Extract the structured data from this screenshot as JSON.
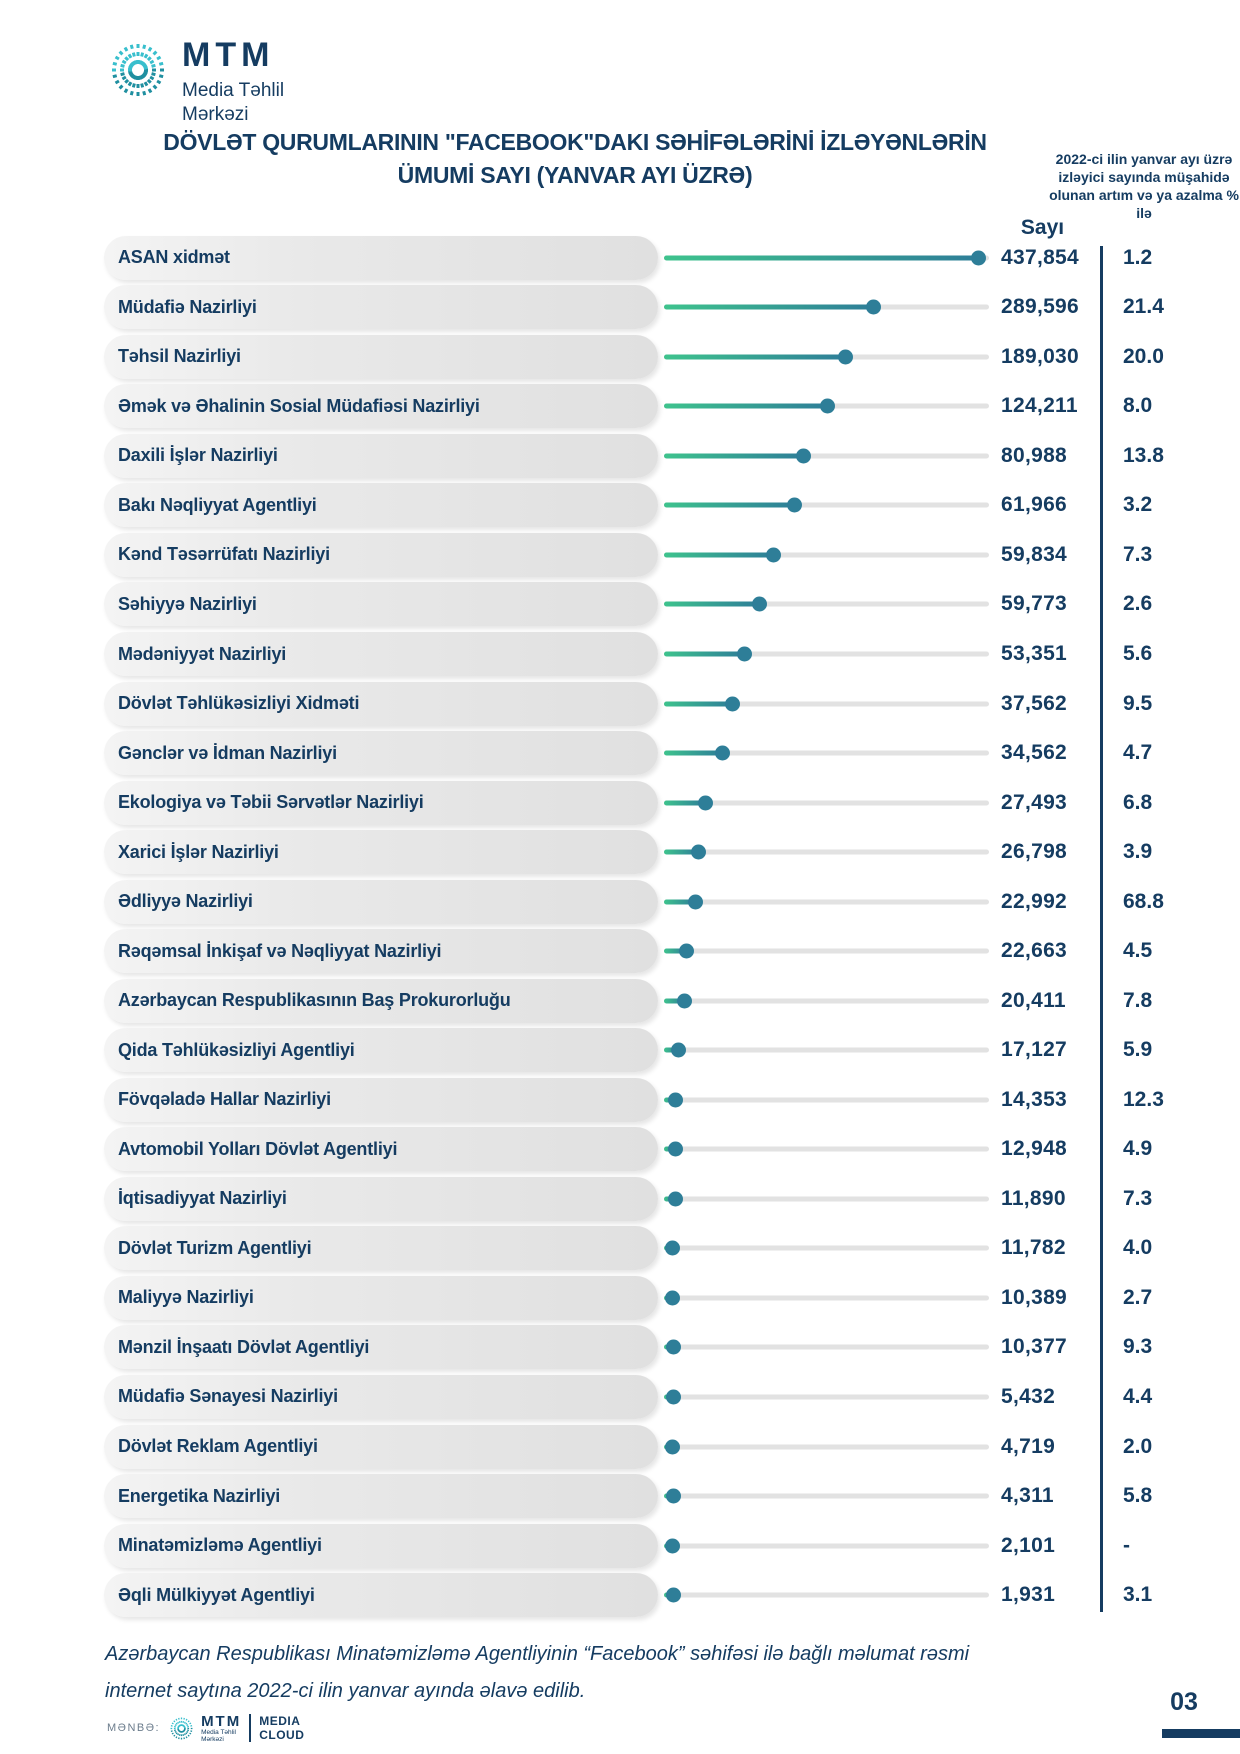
{
  "logo": {
    "brand": "MTM",
    "subtitle_line1": "Media Təhlil",
    "subtitle_line2": "Mərkəzi"
  },
  "header": {
    "title_line1": "DÖVLƏT QURUMLARININ \"FACEBOOK\"DAKI SƏHİFƏLƏRİNİ İZLƏYƏNLƏRİN",
    "title_line2": "ÜMUMİ SAYI (YANVAR AYI ÜZRƏ)",
    "col_count_label": "Sayı",
    "col_pct_label": "2022-ci ilin yanvar ayı üzrə izləyici sayında müşahidə olunan artım və ya azalma % ilə"
  },
  "chart_data": {
    "type": "bar",
    "subtype": "lollipop-horizontal",
    "title": "DÖVLƏT QURUMLARININ \"FACEBOOK\"DAKI SƏHİFƏLƏRİNİ İZLƏYƏNLƏRİN ÜMUMİ SAYI (YANVAR AYI ÜZRƏ)",
    "xlabel": "Sayı",
    "legend_position": "none",
    "grid": false,
    "xlim": [
      0,
      437854
    ],
    "categories": [
      "ASAN xidmət",
      "Müdafiə Nazirliyi",
      "Təhsil Nazirliyi",
      "Əmək və Əhalinin Sosial Müdafiəsi Nazirliyi",
      "Daxili İşlər Nazirliyi",
      "Bakı Nəqliyyat Agentliyi",
      "Kənd Təsərrüfatı Nazirliyi",
      "Səhiyyə Nazirliyi",
      "Mədəniyyət Nazirliyi",
      "Dövlət Təhlükəsizliyi Xidməti",
      "Gənclər və İdman Nazirliyi",
      "Ekologiya və Təbii Sərvətlər Nazirliyi",
      "Xarici İşlər Nazirliyi",
      "Ədliyyə Nazirliyi",
      "Rəqəmsal İnkişaf və Nəqliyyat Nazirliyi",
      "Azərbaycan Respublikasının Baş Prokurorluğu",
      "Qida Təhlükəsizliyi Agentliyi",
      "Fövqəladə Hallar Nazirliyi",
      "Avtomobil Yolları Dövlət Agentliyi",
      "İqtisadiyyat Nazirliyi",
      "Dövlət Turizm Agentliyi",
      "Maliyyə Nazirliyi",
      "Mənzil İnşaatı Dövlət Agentliyi",
      "Müdafiə Sənayesi Nazirliyi",
      "Dövlət Reklam Agentliyi",
      "Energetika Nazirliyi",
      "Minatəmizləmə Agentliyi",
      "Əqli Mülkiyyət Agentliyi"
    ],
    "series": [
      {
        "name": "Sayı (izləyənlərin ümumi sayı)",
        "values": [
          437854,
          289596,
          189030,
          124211,
          80988,
          61966,
          59834,
          59773,
          53351,
          37562,
          34562,
          27493,
          26798,
          22992,
          22663,
          20411,
          17127,
          14353,
          12948,
          11890,
          11782,
          10389,
          10377,
          5432,
          4719,
          4311,
          2101,
          1931
        ]
      },
      {
        "name": "artım və ya azalma % ilə",
        "values": [
          1.2,
          21.4,
          20.0,
          8.0,
          13.8,
          3.2,
          7.3,
          2.6,
          5.6,
          9.5,
          4.7,
          6.8,
          3.9,
          68.8,
          4.5,
          7.8,
          5.9,
          12.3,
          4.9,
          7.3,
          4.0,
          2.7,
          9.3,
          4.4,
          2.0,
          5.8,
          null,
          3.1
        ]
      }
    ],
    "value_labels": [
      "437,854",
      "289,596",
      "189,030",
      "124,211",
      "80,988",
      "61,966",
      "59,834",
      "59,773",
      "53,351",
      "37,562",
      "34,562",
      "27,493",
      "26,798",
      "22,992",
      "22,663",
      "20,411",
      "17,127",
      "14,353",
      "12,948",
      "11,890",
      "11,782",
      "10,389",
      "10,377",
      "5,432",
      "4,719",
      "4,311",
      "2,101",
      "1,931"
    ],
    "pct_labels": [
      "1.2",
      "21.4",
      "20.0",
      "8.0",
      "13.8",
      "3.2",
      "7.3",
      "2.6",
      "5.6",
      "9.5",
      "4.7",
      "6.8",
      "3.9",
      "68.8",
      "4.5",
      "7.8",
      "5.9",
      "12.3",
      "4.9",
      "7.3",
      "4.0",
      "2.7",
      "9.3",
      "4.4",
      "2.0",
      "5.8",
      "-",
      "3.1"
    ],
    "dot_fractions": [
      0.966,
      0.644,
      0.558,
      0.5,
      0.429,
      0.399,
      0.334,
      0.291,
      0.245,
      0.209,
      0.178,
      0.126,
      0.104,
      0.095,
      0.067,
      0.061,
      0.043,
      0.034,
      0.034,
      0.034,
      0.025,
      0.025,
      0.028,
      0.028,
      0.025,
      0.028,
      0.025,
      0.028
    ]
  },
  "footnote": {
    "line1": "Azərbaycan Respublikası Minatəmizləmə Agentliyinin “Facebook” səhifəsi ilə bağlı məlumat rəsmi",
    "line2": "internet saytına 2022-ci ilin yanvar ayında əlavə edilib."
  },
  "footer": {
    "source_label": "MƏNBƏ:",
    "brand": "MTM",
    "brand_sub1": "Media Təhlil",
    "brand_sub2": "Mərkəzi",
    "media_line1": "MEDIA",
    "media_line2": "CLOUD",
    "page_number": "03"
  },
  "colors": {
    "navy": "#153c61",
    "green": "#3ec38d",
    "teal": "#2e7e98",
    "track_gray": "#e2e2e2",
    "logo_cyan": "#38bfcd",
    "logo_teal": "#1f8fa0"
  }
}
